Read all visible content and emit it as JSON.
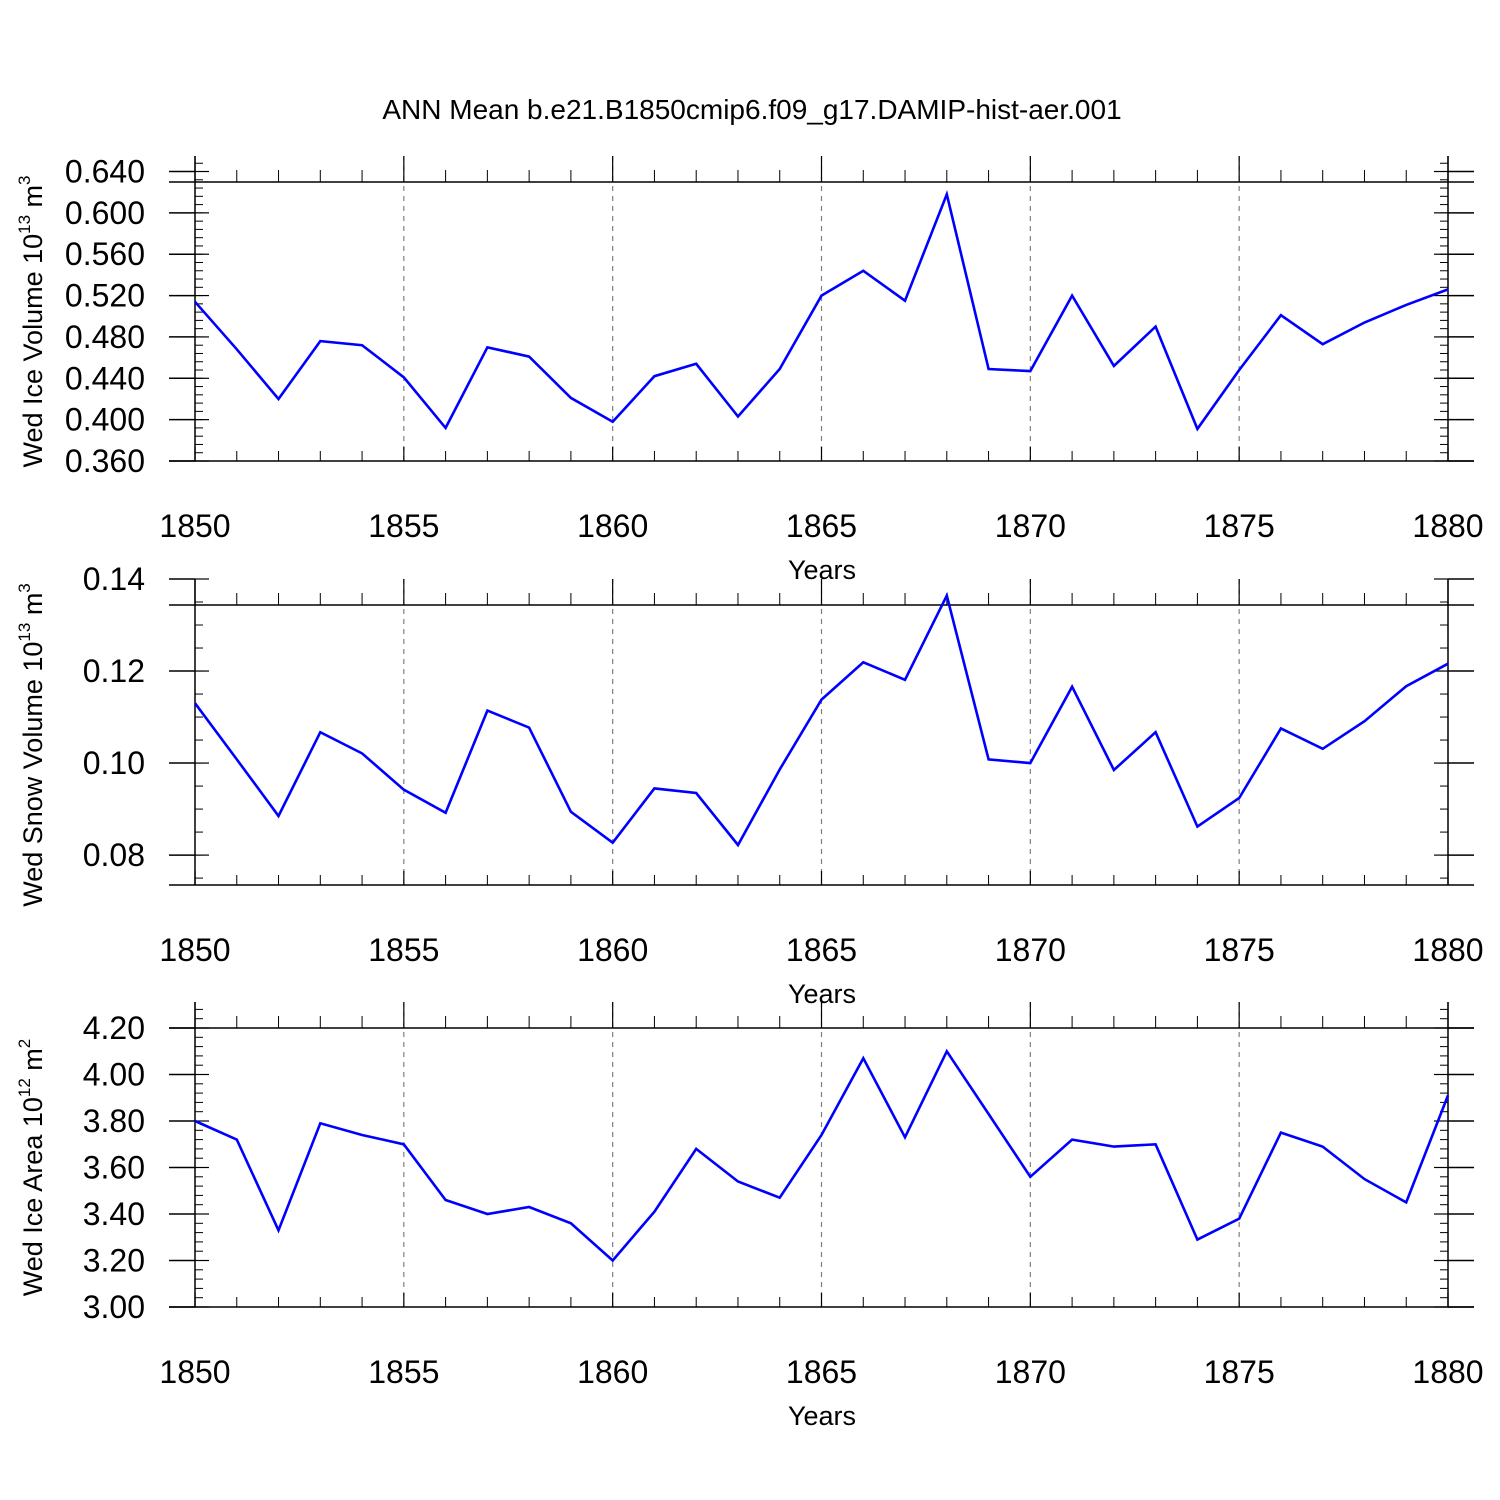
{
  "chart_data": {
    "title": "ANN Mean b.e21.B1850cmip6.f09_g17.DAMIP-hist-aer.001",
    "line_color": "#0000ff",
    "grid_color": "#808080",
    "panels": [
      {
        "type": "line",
        "ylabel": {
          "text": "Wed Ice Volume 10",
          "exp": "13",
          "unit": " m",
          "unit_exp": "3"
        },
        "xlabel": "Years",
        "xlim": [
          1850,
          1880
        ],
        "ylim": [
          0.36,
          0.655
        ],
        "yticks": [
          "0.360",
          "0.400",
          "0.440",
          "0.480",
          "0.520",
          "0.560",
          "0.600",
          "0.640"
        ],
        "ytick_values": [
          0.36,
          0.4,
          0.44,
          0.48,
          0.52,
          0.56,
          0.6,
          0.64
        ],
        "xticks": [
          "1850",
          "1855",
          "1860",
          "1865",
          "1870",
          "1875",
          "1880"
        ],
        "grid": "vertical-dashed",
        "x": [
          1850,
          1851,
          1852,
          1853,
          1854,
          1855,
          1856,
          1857,
          1858,
          1859,
          1860,
          1861,
          1862,
          1863,
          1864,
          1865,
          1866,
          1867,
          1868,
          1869,
          1870,
          1871,
          1872,
          1873,
          1874,
          1875,
          1876,
          1877,
          1878,
          1879,
          1880
        ],
        "values": [
          0.514,
          0.468,
          0.42,
          0.476,
          0.472,
          0.441,
          0.392,
          0.47,
          0.461,
          0.421,
          0.398,
          0.442,
          0.454,
          0.403,
          0.449,
          0.52,
          0.544,
          0.515,
          0.618,
          0.449,
          0.447,
          0.52,
          0.452,
          0.49,
          0.391,
          0.448,
          0.501,
          0.473,
          0.494,
          0.511,
          0.526
        ]
      },
      {
        "type": "line",
        "ylabel": {
          "text": "Wed Snow Volume 10",
          "exp": "13",
          "unit": " m",
          "unit_exp": "3"
        },
        "xlabel": "Years",
        "xlim": [
          1850,
          1880
        ],
        "ylim": [
          0.0735,
          0.14
        ],
        "yticks": [
          "0.08",
          "0.10",
          "0.12",
          "0.14"
        ],
        "ytick_values": [
          0.08,
          0.1,
          0.12,
          0.14
        ],
        "xticks": [
          "1850",
          "1855",
          "1860",
          "1865",
          "1870",
          "1875",
          "1880"
        ],
        "grid": "vertical-dashed",
        "x": [
          1850,
          1851,
          1852,
          1853,
          1854,
          1855,
          1856,
          1857,
          1858,
          1859,
          1860,
          1861,
          1862,
          1863,
          1864,
          1865,
          1866,
          1867,
          1868,
          1869,
          1870,
          1871,
          1872,
          1873,
          1874,
          1875,
          1876,
          1877,
          1878,
          1879,
          1880
        ],
        "values": [
          0.113,
          0.1008,
          0.0885,
          0.1067,
          0.1021,
          0.0942,
          0.0892,
          0.1114,
          0.1077,
          0.0894,
          0.0827,
          0.0945,
          0.0935,
          0.0822,
          0.0986,
          0.1138,
          0.1219,
          0.1181,
          0.1364,
          0.1008,
          0.1,
          0.1166,
          0.0985,
          0.1067,
          0.0862,
          0.0924,
          0.1075,
          0.1031,
          0.1091,
          0.1167,
          0.1216
        ]
      },
      {
        "type": "line",
        "ylabel": {
          "text": "Wed Ice Area 10",
          "exp": "12",
          "unit": " m",
          "unit_exp": "2"
        },
        "xlabel": "Years",
        "xlim": [
          1850,
          1880
        ],
        "ylim": [
          3.0,
          4.2
        ],
        "yticks": [
          "3.00",
          "3.20",
          "3.40",
          "3.60",
          "3.80",
          "4.00",
          "4.20"
        ],
        "ytick_values": [
          3.0,
          3.2,
          3.4,
          3.6,
          3.8,
          4.0,
          4.2
        ],
        "xticks": [
          "1850",
          "1855",
          "1860",
          "1865",
          "1870",
          "1875",
          "1880"
        ],
        "grid": "vertical-dashed",
        "x": [
          1850,
          1851,
          1852,
          1853,
          1854,
          1855,
          1856,
          1857,
          1858,
          1859,
          1860,
          1861,
          1862,
          1863,
          1864,
          1865,
          1866,
          1867,
          1868,
          1869,
          1870,
          1871,
          1872,
          1873,
          1874,
          1875,
          1876,
          1877,
          1878,
          1879,
          1880
        ],
        "values": [
          3.8,
          3.72,
          3.33,
          3.79,
          3.74,
          3.7,
          3.46,
          3.4,
          3.43,
          3.36,
          3.2,
          3.41,
          3.68,
          3.54,
          3.47,
          3.74,
          4.07,
          3.73,
          4.1,
          3.83,
          3.56,
          3.72,
          3.69,
          3.7,
          3.29,
          3.38,
          3.75,
          3.69,
          3.55,
          3.45,
          3.91
        ]
      }
    ]
  }
}
